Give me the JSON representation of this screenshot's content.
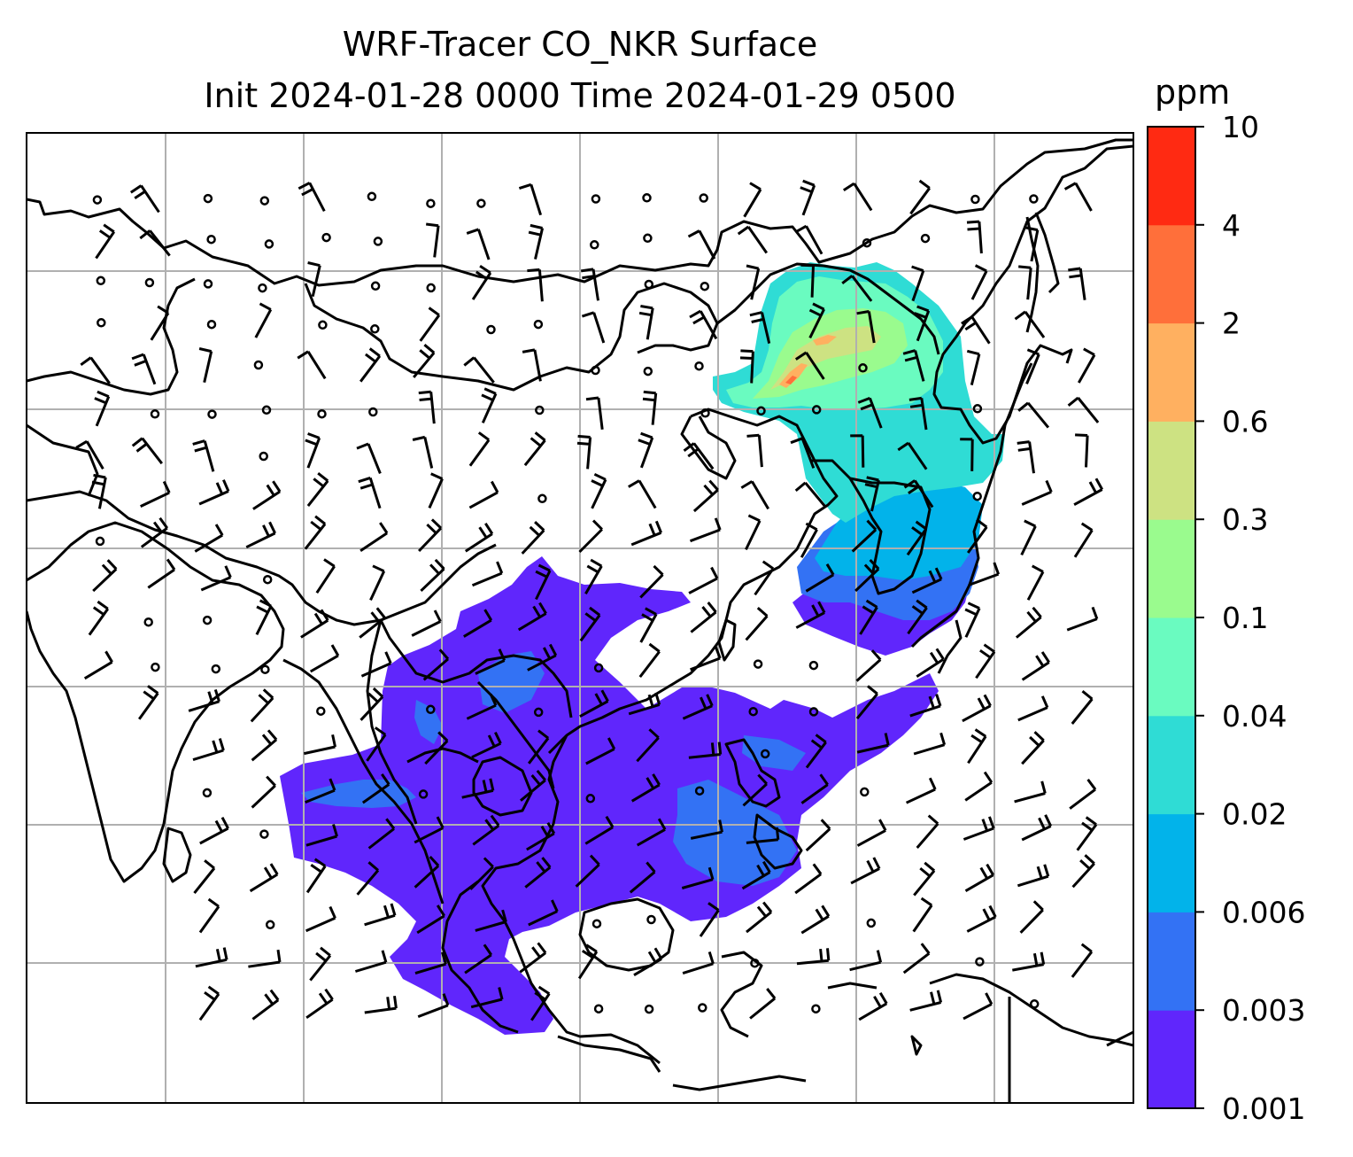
{
  "title": {
    "line1": "WRF-Tracer CO_NKR Surface",
    "line2": "Init 2024-01-28 0000 Time 2024-01-29 0500"
  },
  "colorbar": {
    "unit": "ppm",
    "ticks": [
      "0.001",
      "0.003",
      "0.006",
      "0.02",
      "0.04",
      "0.1",
      "0.3",
      "0.6",
      "2",
      "4",
      "10"
    ],
    "colors": [
      "#6026fc",
      "#3372f4",
      "#02b3ea",
      "#2fdcd5",
      "#6afbc0",
      "#9afb8e",
      "#cde282",
      "#ffb060",
      "#ff6f3a",
      "#ff2a12"
    ]
  },
  "map": {
    "gridlines": true,
    "ocean_color": "#ffffff",
    "land_outline_color": "#000000",
    "wind_barbs": true
  }
}
